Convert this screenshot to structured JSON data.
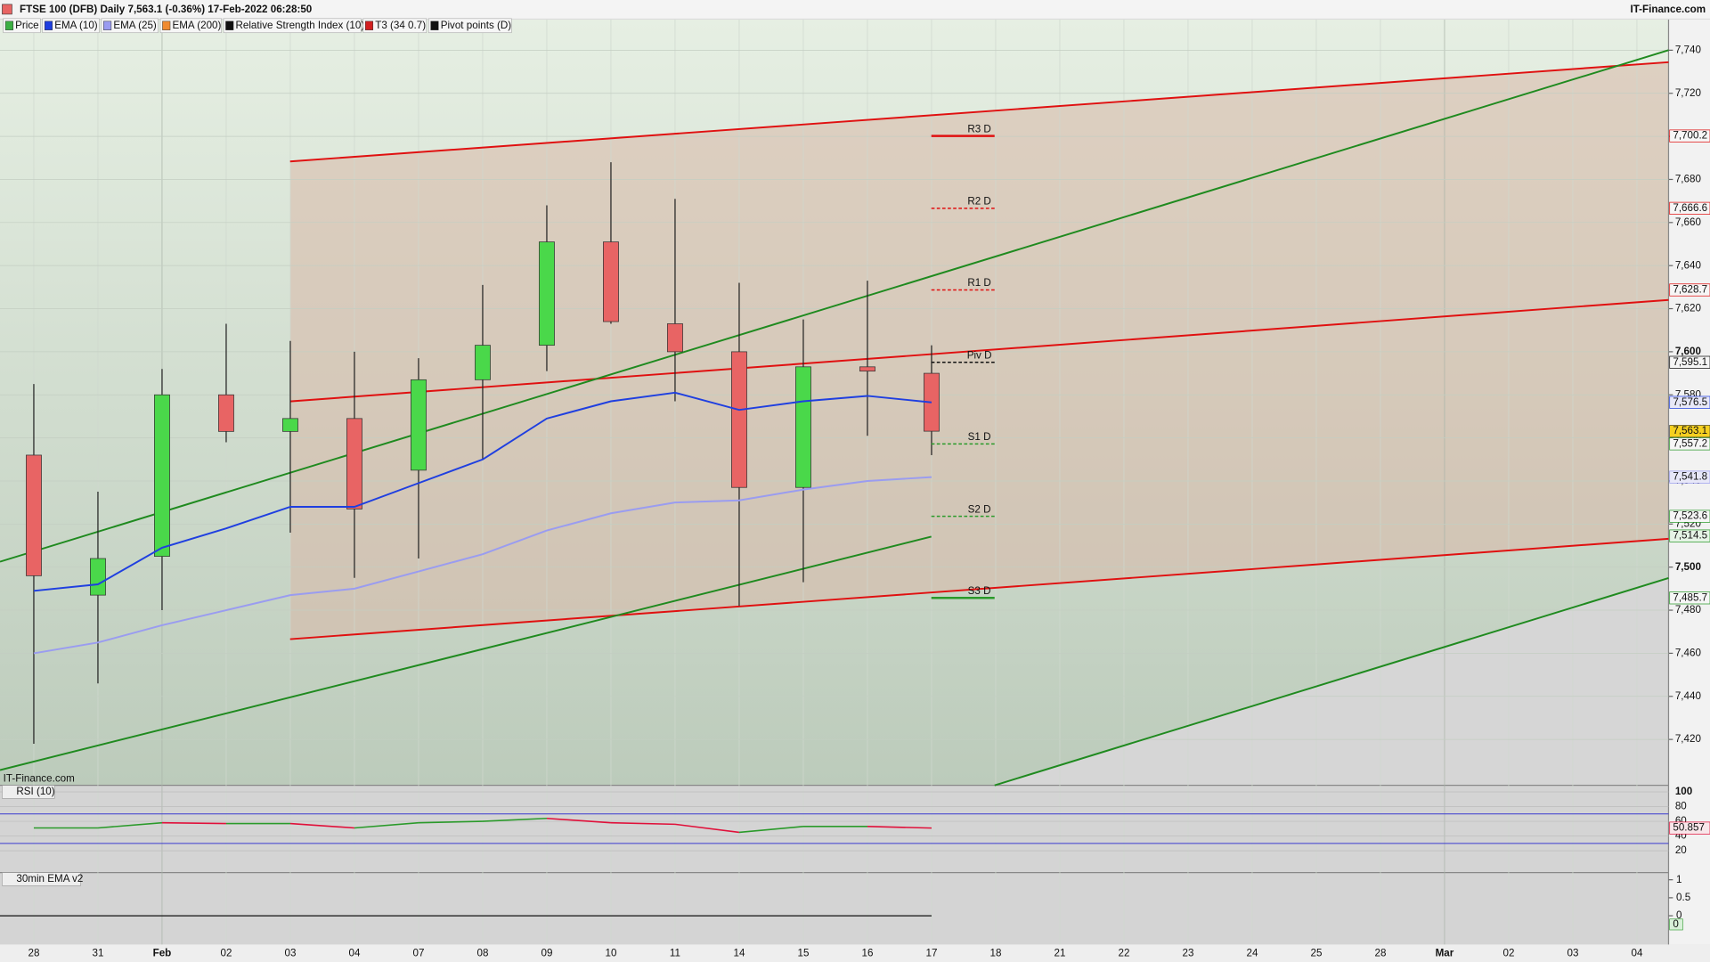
{
  "chart_data": {
    "type": "candlestick",
    "title": "FTSE 100 (DFB) Daily 7,563.1 (-0.36%) 17-Feb-2022 06:28:50",
    "source": "IT-Finance.com",
    "watermark": "IT-Finance.com",
    "legend": [
      {
        "name": "Price",
        "color": "#3cb043"
      },
      {
        "name": "EMA (10)",
        "color": "#1f3fe0"
      },
      {
        "name": "EMA (25)",
        "color": "#9a9cf0"
      },
      {
        "name": "EMA (200)",
        "color": "#f08a30"
      },
      {
        "name": "Relative Strength Index (10)",
        "color": "#111111"
      },
      {
        "name": "T3 (34 0.7)",
        "color": "#d22020"
      },
      {
        "name": "Pivot points (D)",
        "color": "#111111"
      }
    ],
    "categories": [
      "28",
      "31",
      "Feb",
      "02",
      "03",
      "04",
      "07",
      "08",
      "09",
      "10",
      "11",
      "14",
      "15",
      "16",
      "17",
      "18",
      "21",
      "22",
      "23",
      "24",
      "25",
      "28",
      "Mar",
      "02",
      "03",
      "04"
    ],
    "open": [
      7552,
      7487,
      7505,
      7580,
      7563,
      7569,
      7545,
      7587,
      7603,
      7651,
      7613,
      7600,
      7537,
      7593,
      7590,
      null,
      null,
      null,
      null,
      null,
      null,
      null,
      null,
      null,
      null,
      null
    ],
    "high": [
      7585,
      7535,
      7592,
      7613,
      7605,
      7600,
      7597,
      7631,
      7668,
      7688,
      7671,
      7632,
      7615,
      7633,
      7603,
      null,
      null,
      null,
      null,
      null,
      null,
      null,
      null,
      null,
      null,
      null
    ],
    "low": [
      7418,
      7446,
      7480,
      7558,
      7516,
      7495,
      7504,
      7550,
      7591,
      7613,
      7577,
      7482,
      7493,
      7561,
      7552,
      null,
      null,
      null,
      null,
      null,
      null,
      null,
      null,
      null,
      null,
      null
    ],
    "close": [
      7496,
      7504,
      7580,
      7563,
      7569,
      7527,
      7587,
      7603,
      7651,
      7614,
      7600,
      7537,
      7593,
      7591,
      7563.1,
      null,
      null,
      null,
      null,
      null,
      null,
      null,
      null,
      null,
      null,
      null
    ],
    "up_color": "#4ad84a",
    "down_color": "#e86464",
    "series": [
      {
        "color": "#1f3fe0",
        "values": [
          7489,
          7492,
          7509,
          7518,
          7528,
          7528,
          7539,
          7550,
          7569,
          7577,
          7581,
          7573,
          7577,
          7579.5,
          7576.5,
          null,
          null,
          null,
          null,
          null,
          null,
          null,
          null,
          null,
          null,
          null
        ],
        "value_label": "7,576.5"
      },
      {
        "color": "#9a9cf0",
        "values": [
          7460,
          7465,
          7473,
          7480,
          7487,
          7490,
          7498,
          7506,
          7517,
          7525,
          7530,
          7531,
          7536,
          7540,
          7541.8,
          null,
          null,
          null,
          null,
          null,
          null,
          null,
          null,
          null,
          null,
          null
        ],
        "value_label": "7,541.8"
      }
    ],
    "price_label": "7,563.1",
    "t3_label": {
      "value": 7514.5,
      "label": "7,514.5"
    },
    "pivots": [
      {
        "name": "R3 D",
        "value": 7700.2,
        "label": "7,700.2",
        "color": "#e01010",
        "dashed": false
      },
      {
        "name": "R2 D",
        "value": 7666.6,
        "label": "7,666.6",
        "color": "#e01010",
        "dashed": true
      },
      {
        "name": "R1 D",
        "value": 7628.7,
        "label": "7,628.7",
        "color": "#e01010",
        "dashed": true
      },
      {
        "name": "Piv D",
        "value": 7595.1,
        "label": "7,595.1",
        "color": "#111111",
        "dashed": true
      },
      {
        "name": "S1 D",
        "value": 7557.2,
        "label": "7,557.2",
        "color": "#2a9a2a",
        "dashed": true
      },
      {
        "name": "S2 D",
        "value": 7523.6,
        "label": "7,523.6",
        "color": "#2a9a2a",
        "dashed": true
      },
      {
        "name": "S3 D",
        "value": 7485.7,
        "label": "7,485.7",
        "color": "#2a9a2a",
        "dashed": false
      }
    ],
    "ylim": [
      7398.7,
      7754.2
    ],
    "yticks": [
      {
        "value": 7420,
        "label": "7,420"
      },
      {
        "value": 7440,
        "label": "7,440"
      },
      {
        "value": 7460,
        "label": "7,460"
      },
      {
        "value": 7480,
        "label": "7,480"
      },
      {
        "value": 7500,
        "label": "7,500"
      },
      {
        "value": 7520,
        "label": "7,520"
      },
      {
        "value": 7540,
        "label": "7,540"
      },
      {
        "value": 7560,
        "label": "7,560"
      },
      {
        "value": 7580,
        "label": "7,580"
      },
      {
        "value": 7600,
        "label": "7,600"
      },
      {
        "value": 7620,
        "label": "7,620"
      },
      {
        "value": 7640,
        "label": "7,640"
      },
      {
        "value": 7660,
        "label": "7,660"
      },
      {
        "value": 7680,
        "label": "7,680"
      },
      {
        "value": 7700,
        "label": "7,700"
      },
      {
        "value": 7720,
        "label": "7,720"
      },
      {
        "value": 7740,
        "label": "7,740"
      }
    ],
    "grid": true,
    "rsi": {
      "title": "RSI (10)",
      "values": [
        51,
        51,
        58,
        57,
        57,
        51,
        58,
        60,
        64,
        58,
        56,
        45,
        53,
        53,
        50.857,
        null,
        null,
        null,
        null,
        null,
        null,
        null,
        null,
        null,
        null,
        null
      ],
      "ylim": [
        -9.6,
        108.9
      ],
      "yticks": [
        20,
        40,
        60,
        80,
        100
      ],
      "bands": [
        30,
        70
      ],
      "up_color": "#2a9a2a",
      "down_color": "#e0103a"
    },
    "ema30": {
      "title": "30min EMA v2",
      "values": [
        0,
        0,
        0,
        0,
        0,
        0,
        0,
        0,
        0,
        0,
        0,
        0,
        0,
        0,
        0,
        null,
        null,
        null,
        null,
        null,
        null,
        null,
        null,
        null,
        null,
        null
      ],
      "ylim": [
        -0.8,
        1.2
      ],
      "yticks": [
        0,
        0.5,
        1
      ]
    }
  }
}
